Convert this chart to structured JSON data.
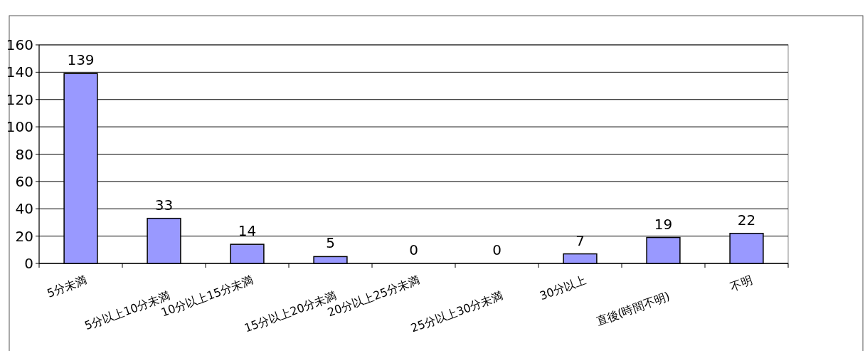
{
  "chart_data": {
    "type": "bar",
    "categories": [
      "5分未満",
      "5分以上10分未満",
      "10分以上15分未満",
      "15分以上20分未満",
      "20分以上25分未満",
      "25分以上30分未満",
      "30分以上",
      "直後(時間不明)",
      "不明"
    ],
    "values": [
      139,
      33,
      14,
      5,
      0,
      0,
      7,
      19,
      22
    ],
    "color": "#9999ff",
    "ylim": [
      0,
      160
    ],
    "yticks": [
      0,
      20,
      40,
      60,
      80,
      100,
      120,
      140,
      160
    ],
    "grid": "y",
    "data_labels": true
  }
}
